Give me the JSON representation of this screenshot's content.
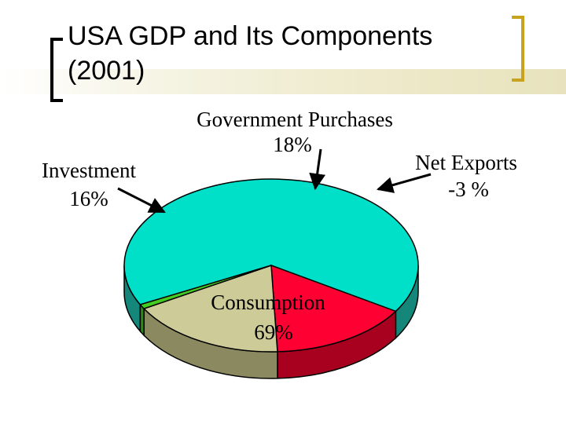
{
  "slide": {
    "title_line1": "USA GDP and Its Components",
    "title_line2": "(2001)"
  },
  "chart_data": {
    "type": "pie",
    "title": "USA GDP and Its Components (2001)",
    "slices": [
      {
        "name": "Consumption",
        "label": "Consumption",
        "value_label": "69%",
        "value": 69,
        "color": "#00dfc8",
        "side_color": "#14877a"
      },
      {
        "name": "Investment",
        "label": "Investment",
        "value_label": "16%",
        "value": 16,
        "color": "#ff0033",
        "side_color": "#a8001f"
      },
      {
        "name": "Government Purchases",
        "label": "Government Purchases",
        "value_label": "18%",
        "value": 18,
        "color": "#cdcc99",
        "side_color": "#8a8960"
      },
      {
        "name": "Net Exports",
        "label": "Net Exports",
        "value_label": "-3 %",
        "value": -3,
        "color": "#44cc22",
        "side_color": "#2b8a15"
      }
    ]
  }
}
